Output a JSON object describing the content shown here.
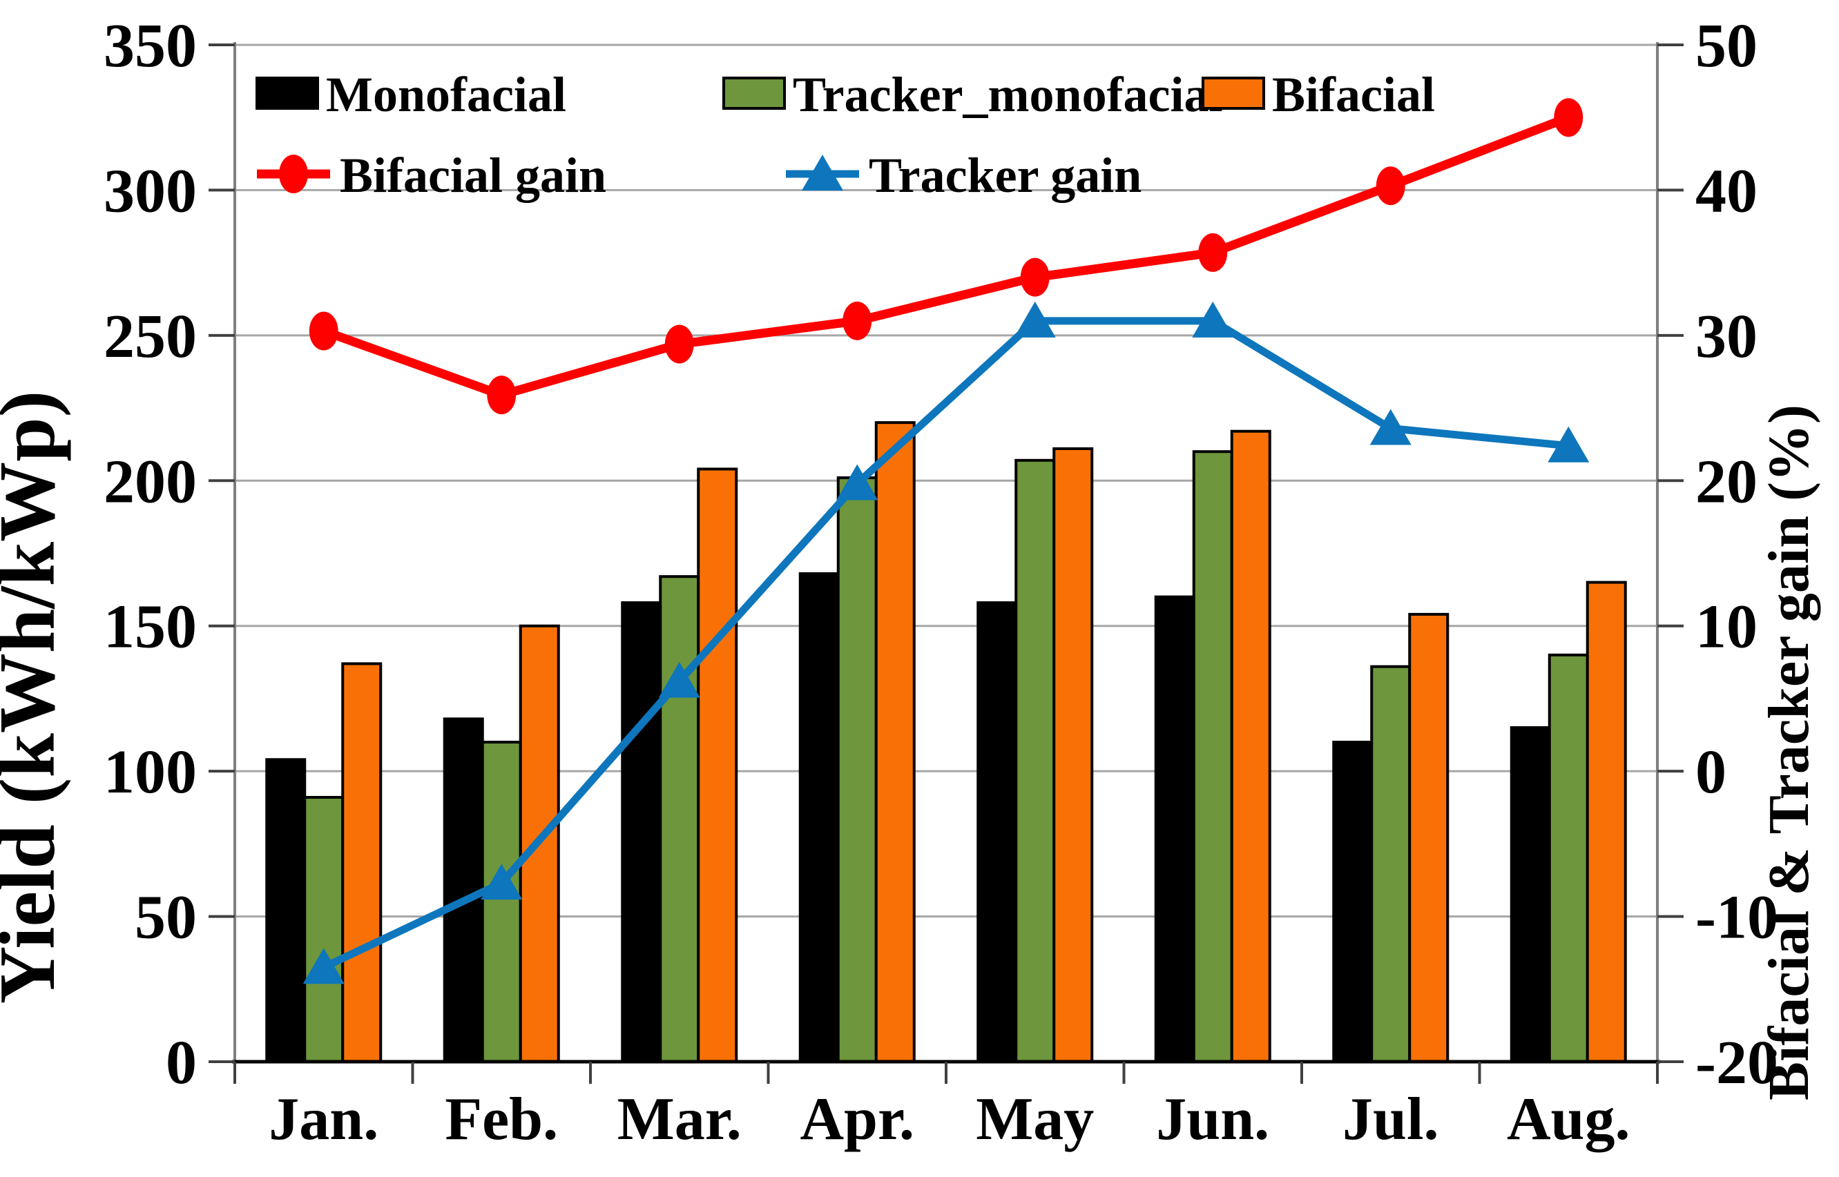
{
  "chart_data": {
    "type": "combo-bar-line",
    "categories": [
      "Jan.",
      "Feb.",
      "Mar.",
      "Apr.",
      "May",
      "Jun.",
      "Jul.",
      "Aug."
    ],
    "bar_series": [
      {
        "name": "Monofacial",
        "color": "#000000",
        "axis": "left",
        "values": [
          104,
          118,
          158,
          168,
          158,
          160,
          110,
          115
        ]
      },
      {
        "name": "Tracker_monofacial",
        "color": "#6E963C",
        "axis": "left",
        "values": [
          91,
          110,
          167,
          201,
          207,
          210,
          136,
          140
        ]
      },
      {
        "name": "Bifacial",
        "color": "#F97106",
        "axis": "left",
        "values": [
          137,
          150,
          204,
          220,
          211,
          217,
          154,
          165
        ]
      }
    ],
    "line_series": [
      {
        "name": "Bifacial gain",
        "color": "#FF0000",
        "marker": "circle",
        "axis": "right",
        "values": [
          30.3,
          25.9,
          29.4,
          31.0,
          34.0,
          35.7,
          40.3,
          45.0
        ]
      },
      {
        "name": "Tracker gain",
        "color": "#0E76BC",
        "marker": "triangle",
        "axis": "right",
        "values": [
          -13.5,
          -7.7,
          6.2,
          19.8,
          31.0,
          31.0,
          23.6,
          22.4
        ]
      }
    ],
    "left_axis": {
      "label": "Yield (kWh/kWp)",
      "min": 0,
      "max": 350,
      "step": 50,
      "ticks": [
        "0",
        "50",
        "100",
        "150",
        "200",
        "250",
        "300",
        "350"
      ]
    },
    "right_axis": {
      "label": "Bifacial & Tracker gain (%)",
      "min": -20,
      "max": 50,
      "step": 10,
      "ticks": [
        "-20",
        "-10",
        "0",
        "10",
        "20",
        "30",
        "40",
        "50"
      ]
    },
    "grid": true,
    "legend_position": "top-left-inside",
    "colors": {
      "grid": "#A6A6A6",
      "axis": "#7F7F7F",
      "baseline": "#000000",
      "tick": "#404040"
    }
  }
}
